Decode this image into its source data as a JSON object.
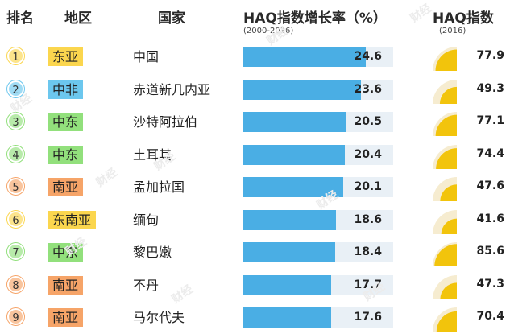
{
  "headers": {
    "rank": "排名",
    "region": "地区",
    "country": "国家",
    "growth": "HAQ指数增长率（%）",
    "growth_sub": "(2000-2016)",
    "haq": "HAQ指数",
    "haq_sub": "(2016)"
  },
  "watermark": "财经",
  "colors": {
    "bar": "#4aaee4",
    "bar_track": "#e9f0f6",
    "gauge_fill": "#f2c40c",
    "gauge_track": "#f6ecd0",
    "region_东亚": "#fbd64e",
    "region_中非": "#6cc7ee",
    "region_中东": "#92e07c",
    "region_南亚": "#f6a468",
    "region_东南亚": "#fbd64e"
  },
  "chart_data": {
    "type": "table",
    "growth_max": 30,
    "haq_max": 100,
    "rows": [
      {
        "rank": "1",
        "region": "东亚",
        "country": "中国",
        "growth": "24.6",
        "haq": "77.9"
      },
      {
        "rank": "2",
        "region": "中非",
        "country": "赤道新几内亚",
        "growth": "23.6",
        "haq": "49.3"
      },
      {
        "rank": "3",
        "region": "中东",
        "country": "沙特阿拉伯",
        "growth": "20.5",
        "haq": "77.1"
      },
      {
        "rank": "4",
        "region": "中东",
        "country": "土耳其",
        "growth": "20.4",
        "haq": "74.4"
      },
      {
        "rank": "5",
        "region": "南亚",
        "country": "孟加拉国",
        "growth": "20.1",
        "haq": "47.6"
      },
      {
        "rank": "6",
        "region": "东南亚",
        "country": "缅甸",
        "growth": "18.6",
        "haq": "41.6"
      },
      {
        "rank": "7",
        "region": "中东",
        "country": "黎巴嫩",
        "growth": "18.4",
        "haq": "85.6"
      },
      {
        "rank": "8",
        "region": "南亚",
        "country": "不丹",
        "growth": "17.7",
        "haq": "47.3"
      },
      {
        "rank": "9",
        "region": "南亚",
        "country": "马尔代夫",
        "growth": "17.6",
        "haq": "70.4"
      }
    ]
  }
}
